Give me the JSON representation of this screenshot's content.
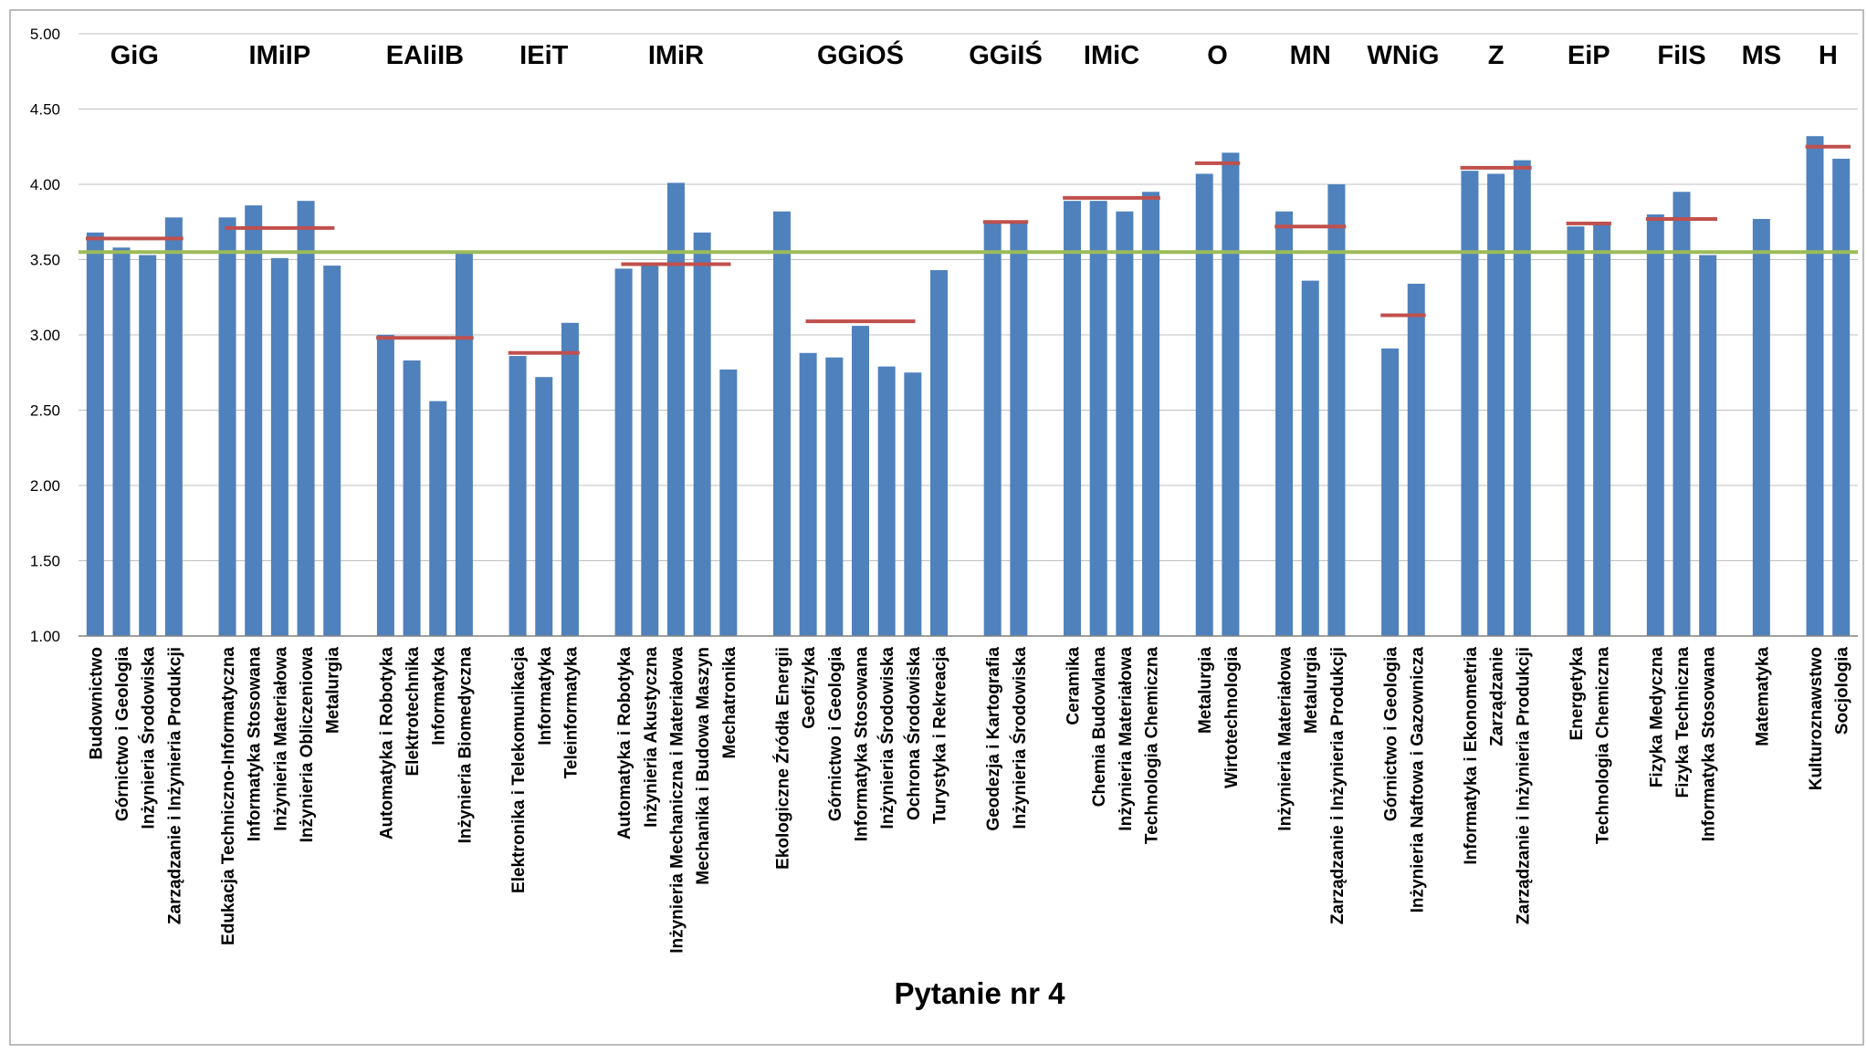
{
  "chart_data": {
    "type": "bar",
    "xlabel": "Pytanie nr 4",
    "ylim": [
      1.0,
      5.0
    ],
    "yticks": [
      "1.00",
      "1.50",
      "2.00",
      "2.50",
      "3.00",
      "3.50",
      "4.00",
      "4.50",
      "5.00"
    ],
    "grid": "horizontal",
    "legend": "none",
    "reference_line": 3.55,
    "colors": {
      "bar": "#4F81BD",
      "group_avg": "#C0504D",
      "overall_avg": "#9BBB59",
      "grid": "#BFBFBF"
    },
    "groups": [
      {
        "name": "GiG",
        "avg": 3.64,
        "bars": [
          {
            "label": "Budownictwo",
            "value": 3.68
          },
          {
            "label": "Górnictwo i Geologia",
            "value": 3.58
          },
          {
            "label": "Inżynieria Środowiska",
            "value": 3.53
          },
          {
            "label": "Zarządzanie i Inżynieria Produkcji",
            "value": 3.78
          }
        ]
      },
      {
        "name": "IMiIP",
        "avg": 3.71,
        "bars": [
          {
            "label": "Edukacja Techniczno-Informatyczna",
            "value": 3.78
          },
          {
            "label": "Informatyka Stosowana",
            "value": 3.86
          },
          {
            "label": "Inżynieria Materiałowa",
            "value": 3.51
          },
          {
            "label": "Inżynieria Obliczeniowa",
            "value": 3.89
          },
          {
            "label": "Metalurgia",
            "value": 3.46
          }
        ]
      },
      {
        "name": "EAIiIB",
        "avg": 2.98,
        "bars": [
          {
            "label": "Automatyka i Robotyka",
            "value": 3.0
          },
          {
            "label": "Elektrotechnika",
            "value": 2.83
          },
          {
            "label": "Informatyka",
            "value": 2.56
          },
          {
            "label": "Inżynieria Biomedyczna",
            "value": 3.56
          }
        ]
      },
      {
        "name": "IEiT",
        "avg": 2.88,
        "bars": [
          {
            "label": "Elektronika i Telekomunikacja",
            "value": 2.86
          },
          {
            "label": "Informatyka",
            "value": 2.72
          },
          {
            "label": "Teleinformatyka",
            "value": 3.08
          }
        ]
      },
      {
        "name": "IMiR",
        "avg": 3.47,
        "bars": [
          {
            "label": "Automatyka i Robotyka",
            "value": 3.44
          },
          {
            "label": "Inżynieria Akustyczna",
            "value": 3.47
          },
          {
            "label": "Inżynieria Mechaniczna i Materiałowa",
            "value": 4.01
          },
          {
            "label": "Mechanika i Budowa Maszyn",
            "value": 3.68
          },
          {
            "label": "Mechatronika",
            "value": 2.77
          }
        ]
      },
      {
        "name": "GGiOŚ",
        "avg": 3.09,
        "bars": [
          {
            "label": "Ekologiczne Źródła Energii",
            "value": 3.82
          },
          {
            "label": "Geofizyka",
            "value": 2.88
          },
          {
            "label": "Górnictwo i Geologia",
            "value": 2.85
          },
          {
            "label": "Informatyka Stosowana",
            "value": 3.06
          },
          {
            "label": "Inżynieria Środowiska",
            "value": 2.79
          },
          {
            "label": "Ochrona Środowiska",
            "value": 2.75
          },
          {
            "label": "Turystyka i Rekreacja",
            "value": 3.43
          }
        ]
      },
      {
        "name": "GGiIŚ",
        "avg": 3.75,
        "bars": [
          {
            "label": "Geodezja i Kartografia",
            "value": 3.76
          },
          {
            "label": "Inżynieria Środowiska",
            "value": 3.74
          }
        ]
      },
      {
        "name": "IMiC",
        "avg": 3.91,
        "bars": [
          {
            "label": "Ceramika",
            "value": 3.89
          },
          {
            "label": "Chemia Budowlana",
            "value": 3.89
          },
          {
            "label": "Inżynieria Materiałowa",
            "value": 3.82
          },
          {
            "label": "Technologia Chemiczna",
            "value": 3.95
          }
        ]
      },
      {
        "name": "O",
        "avg": 4.14,
        "bars": [
          {
            "label": "Metalurgia",
            "value": 4.07
          },
          {
            "label": "Wirtotechnologia",
            "value": 4.21
          }
        ]
      },
      {
        "name": "MN",
        "avg": 3.72,
        "bars": [
          {
            "label": "Inżynieria Materiałowa",
            "value": 3.82
          },
          {
            "label": "Metalurgia",
            "value": 3.36
          },
          {
            "label": "Zarządzanie i Inżynieria Produkcji",
            "value": 4.0
          }
        ]
      },
      {
        "name": "WNiG",
        "avg": 3.13,
        "bars": [
          {
            "label": "Górnictwo i Geologia",
            "value": 2.91
          },
          {
            "label": "Inżynieria Naftowa i Gazownicza",
            "value": 3.34
          }
        ]
      },
      {
        "name": "Z",
        "avg": 4.11,
        "bars": [
          {
            "label": "Informatyka i Ekonometria",
            "value": 4.09
          },
          {
            "label": "Zarządzanie",
            "value": 4.07
          },
          {
            "label": "Zarządzanie i Inżynieria Produkcji",
            "value": 4.16
          }
        ]
      },
      {
        "name": "EiP",
        "avg": 3.74,
        "bars": [
          {
            "label": "Energetyka",
            "value": 3.72
          },
          {
            "label": "Technologia Chemiczna",
            "value": 3.75
          }
        ]
      },
      {
        "name": "FiIS",
        "avg": 3.77,
        "bars": [
          {
            "label": "Fizyka Medyczna",
            "value": 3.8
          },
          {
            "label": "Fizyka Techniczna",
            "value": 3.95
          },
          {
            "label": "Informatyka Stosowana",
            "value": 3.53
          }
        ]
      },
      {
        "name": "MS",
        "avg": null,
        "bars": [
          {
            "label": "Matematyka",
            "value": 3.77
          }
        ]
      },
      {
        "name": "H",
        "avg": 4.25,
        "bars": [
          {
            "label": "Kulturoznawstwo",
            "value": 4.32
          },
          {
            "label": "Socjologia",
            "value": 4.17
          }
        ]
      }
    ]
  }
}
